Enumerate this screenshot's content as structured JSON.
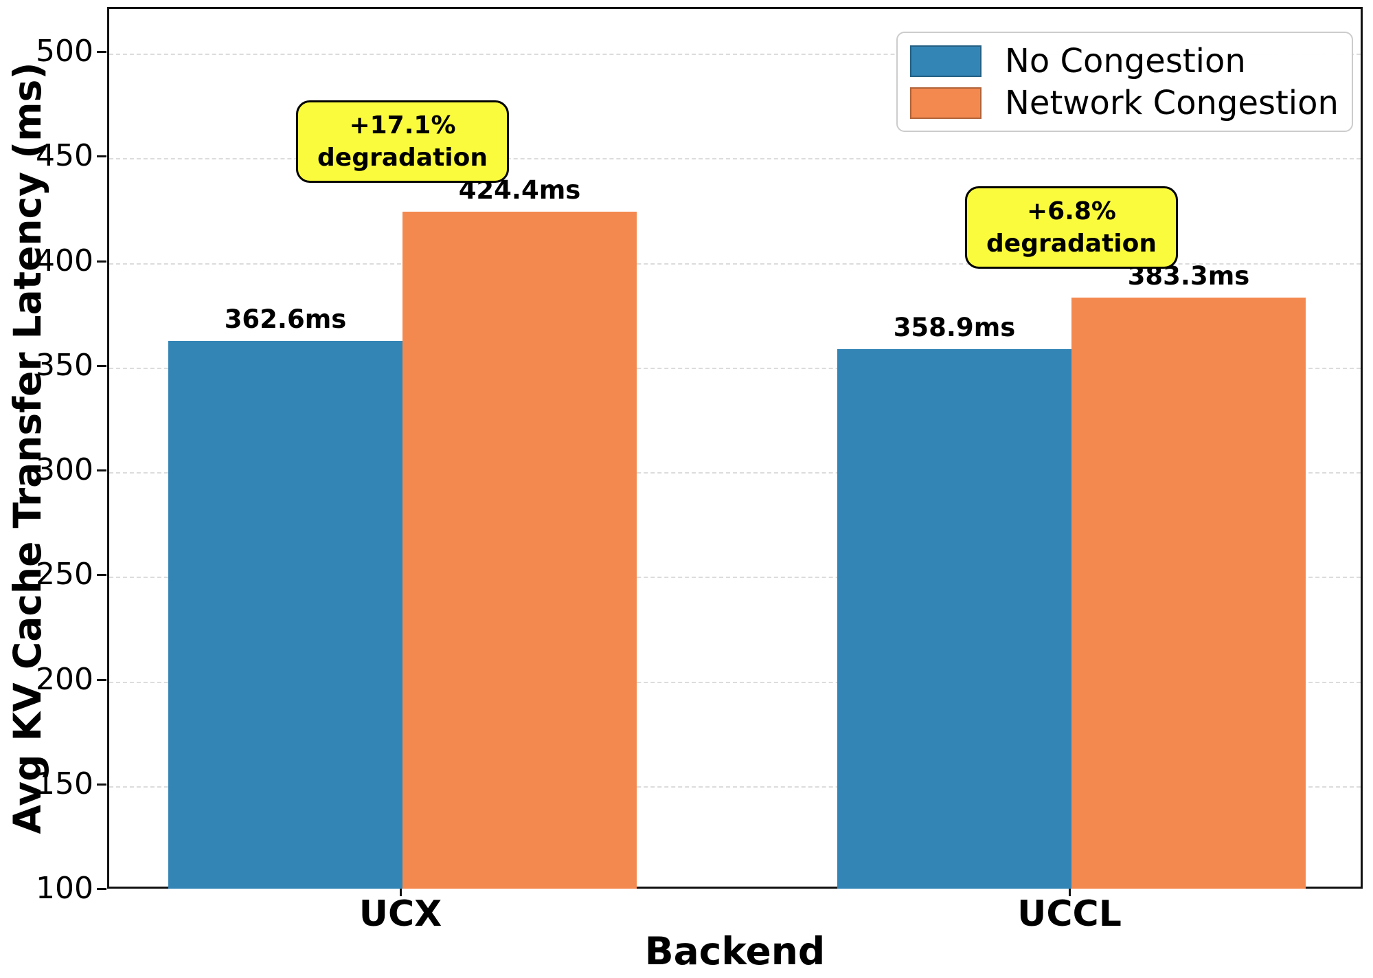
{
  "chart_data": {
    "type": "bar",
    "title": "",
    "xlabel": "Backend",
    "ylabel": "Avg KV Cache Transfer Latency (ms)",
    "categories": [
      "UCX",
      "UCCL"
    ],
    "series": [
      {
        "name": "No Congestion",
        "color": "#3385B6",
        "values": [
          362.6,
          358.9
        ],
        "labels": [
          "362.6ms",
          "358.9ms"
        ]
      },
      {
        "name": "Network Congestion",
        "color": "#F4894F",
        "values": [
          424.4,
          383.3
        ],
        "labels": [
          "424.4ms",
          "383.3ms"
        ]
      }
    ],
    "annotations": [
      {
        "category": "UCX",
        "text": "+17.1%\ndegradation",
        "center_value": 458,
        "bg_color": "#FBFB3E"
      },
      {
        "category": "UCCL",
        "text": "+6.8%\ndegradation",
        "center_value": 417,
        "bg_color": "#FBFB3E"
      }
    ],
    "y_axis": {
      "min": 100,
      "max": 520,
      "tick_step": 50,
      "ticks": [
        100,
        150,
        200,
        250,
        300,
        350,
        400,
        450,
        500
      ]
    },
    "legend": {
      "position": "top-right",
      "entries": [
        "No Congestion",
        "Network Congestion"
      ]
    },
    "grid": {
      "horizontal": true,
      "style": "dashed",
      "color": "#dcdcdc"
    }
  }
}
